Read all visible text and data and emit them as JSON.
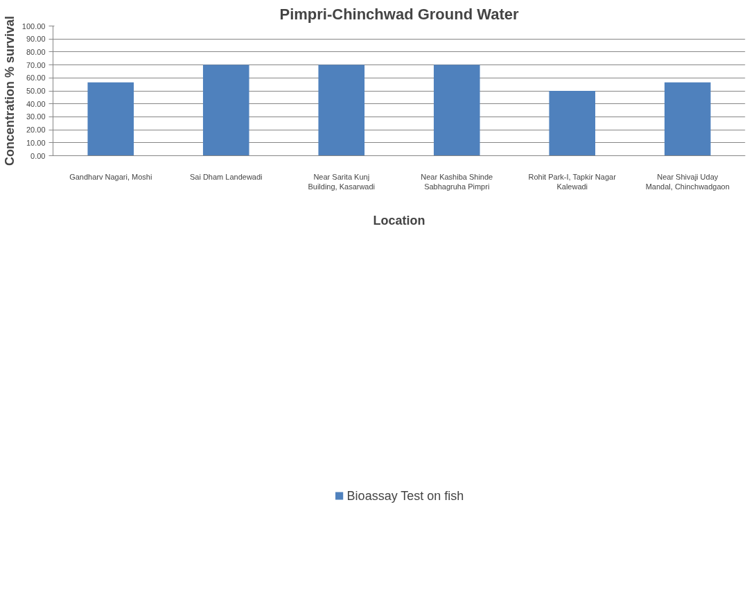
{
  "chart_data": {
    "type": "bar",
    "title": "Pimpri-Chinchwad Ground Water",
    "xlabel": "Location",
    "ylabel": "Concentration % survival",
    "categories": [
      "Gandharv Nagari, Moshi",
      "Sai Dham Landewadi",
      "Near Sarita Kunj\nBuilding, Kasarwadi",
      "Near Kashiba Shinde\nSabhagruha Pimpri",
      "Rohit Park-I, Tapkir Nagar\nKalewadi",
      "Near Shivaji Uday\nMandal, Chinchwadgaon"
    ],
    "series": [
      {
        "name": "Bioassay Test on fish",
        "color": "#4f81bd",
        "values": [
          56.5,
          70,
          70,
          70,
          50,
          56.5
        ]
      }
    ],
    "ylim": [
      0,
      100
    ],
    "yticks": [
      {
        "value": 0,
        "label": "0.00"
      },
      {
        "value": 10,
        "label": "10.00"
      },
      {
        "value": 20,
        "label": "20.00"
      },
      {
        "value": 30,
        "label": "30.00"
      },
      {
        "value": 40,
        "label": "40.00"
      },
      {
        "value": 50,
        "label": "50.00"
      },
      {
        "value": 60,
        "label": "60.00"
      },
      {
        "value": 70,
        "label": "70.00"
      },
      {
        "value": 80,
        "label": "80.00"
      },
      {
        "value": 90,
        "label": "90.00"
      },
      {
        "value": 100,
        "label": "100.00"
      }
    ],
    "grid": "y",
    "legend": "bottom"
  }
}
